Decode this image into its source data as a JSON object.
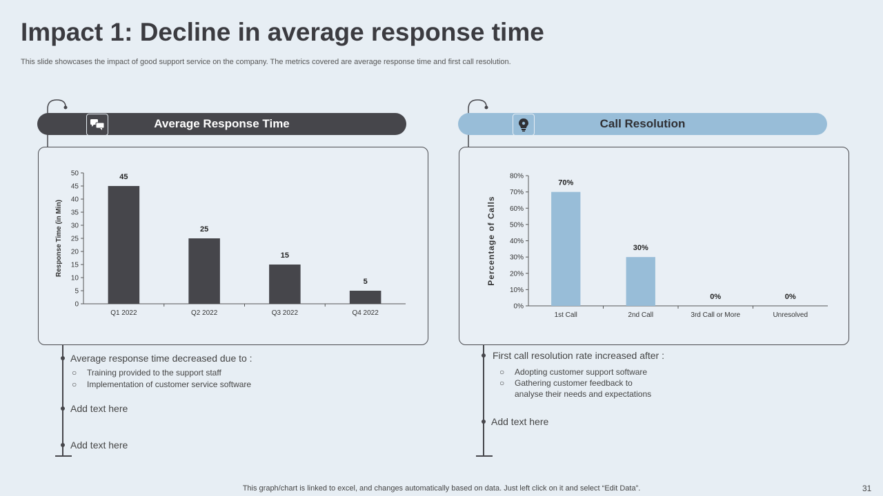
{
  "title": "Impact 1: Decline in average response time",
  "subtitle": "This slide showcases the impact of good support service on the company. The metrics covered are average response time and first call resolution.",
  "left_section": {
    "header": "Average Response Time",
    "icon": "chat-bubbles-icon",
    "bullet_main": "Average  response time decreased due to :",
    "sub_items": [
      "Training  provided  to the support staff",
      "Implementation  of customer service  software"
    ],
    "add_text_1": "Add text here",
    "add_text_2": "Add text here"
  },
  "right_section": {
    "header": "Call Resolution",
    "icon": "lightbulb-gear-icon",
    "bullet_main": "First call resolution rate increased after :",
    "sub_items": [
      "Adopting customer support software",
      "Gathering customer feedback to",
      "analyse their needs and expectations"
    ],
    "add_text_1": "Add text here"
  },
  "chart_data": [
    {
      "type": "bar",
      "title": "",
      "categories": [
        "Q1 2022",
        "Q2 2022",
        "Q3 2022",
        "Q4 2022"
      ],
      "values": [
        45,
        25,
        15,
        5
      ],
      "data_labels": [
        "45",
        "25",
        "15",
        "5"
      ],
      "ylabel": "Response Time (in Min)",
      "xlabel": "",
      "ylim": [
        0,
        50
      ],
      "yticks": [
        0,
        5,
        10,
        15,
        20,
        25,
        30,
        35,
        40,
        45,
        50
      ],
      "ytick_labels": [
        "0",
        "5",
        "10",
        "15",
        "20",
        "25",
        "30",
        "35",
        "40",
        "45",
        "50"
      ],
      "color": "#46464b"
    },
    {
      "type": "bar",
      "title": "",
      "categories": [
        "1st Call",
        "2nd Call",
        "3rd Call or More",
        "Unresolved"
      ],
      "values": [
        70,
        30,
        0,
        0
      ],
      "data_labels": [
        "70%",
        "30%",
        "0%",
        "0%"
      ],
      "ylabel": "Percentage of Calls",
      "xlabel": "",
      "ylim": [
        0,
        80
      ],
      "yticks": [
        0,
        10,
        20,
        30,
        40,
        50,
        60,
        70,
        80
      ],
      "ytick_labels": [
        "0%",
        "10%",
        "20%",
        "30%",
        "40%",
        "50%",
        "60%",
        "70%",
        "80%"
      ],
      "color": "#98bdd8"
    }
  ],
  "footer": "This graph/chart is linked to excel,  and changes automatically based on data. Just left click on it and select “Edit Data”.",
  "page_number": "31"
}
